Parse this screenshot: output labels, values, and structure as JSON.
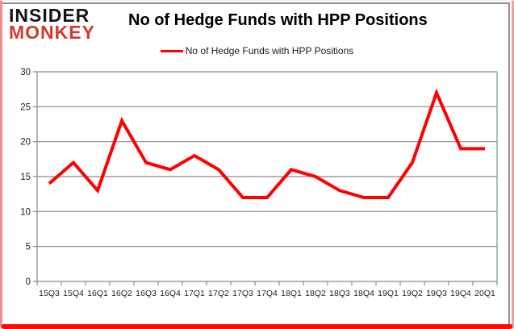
{
  "logo": {
    "line1": "INSIDER",
    "line2": "MONKEY",
    "color1": "#141414",
    "color2": "#d13a2b"
  },
  "header": {
    "title": "No of Hedge Funds with HPP Positions"
  },
  "legend": {
    "label": "No of Hedge Funds with HPP Positions",
    "line_color": "#ff0000"
  },
  "chart_data": {
    "type": "line",
    "title": "No of Hedge Funds with HPP Positions",
    "categories": [
      "15Q3",
      "15Q4",
      "16Q1",
      "16Q2",
      "16Q3",
      "16Q4",
      "17Q1",
      "17Q2",
      "17Q3",
      "17Q4",
      "18Q1",
      "18Q2",
      "18Q3",
      "18Q4",
      "19Q1",
      "19Q2",
      "19Q3",
      "19Q4",
      "20Q1"
    ],
    "series": [
      {
        "name": "No of Hedge Funds with HPP Positions",
        "color": "#ff0000",
        "values": [
          14,
          17,
          13,
          23,
          17,
          16,
          18,
          16,
          12,
          12,
          16,
          15,
          13,
          12,
          12,
          17,
          27,
          19,
          19
        ]
      }
    ],
    "xlabel": "",
    "ylabel": "",
    "ylim": [
      0,
      30
    ],
    "yticks": [
      0,
      5,
      10,
      15,
      20,
      25,
      30
    ],
    "grid": true,
    "gridline_color": "#8a8a8a",
    "axis_label_color": "#212121",
    "legend_position": "top"
  }
}
